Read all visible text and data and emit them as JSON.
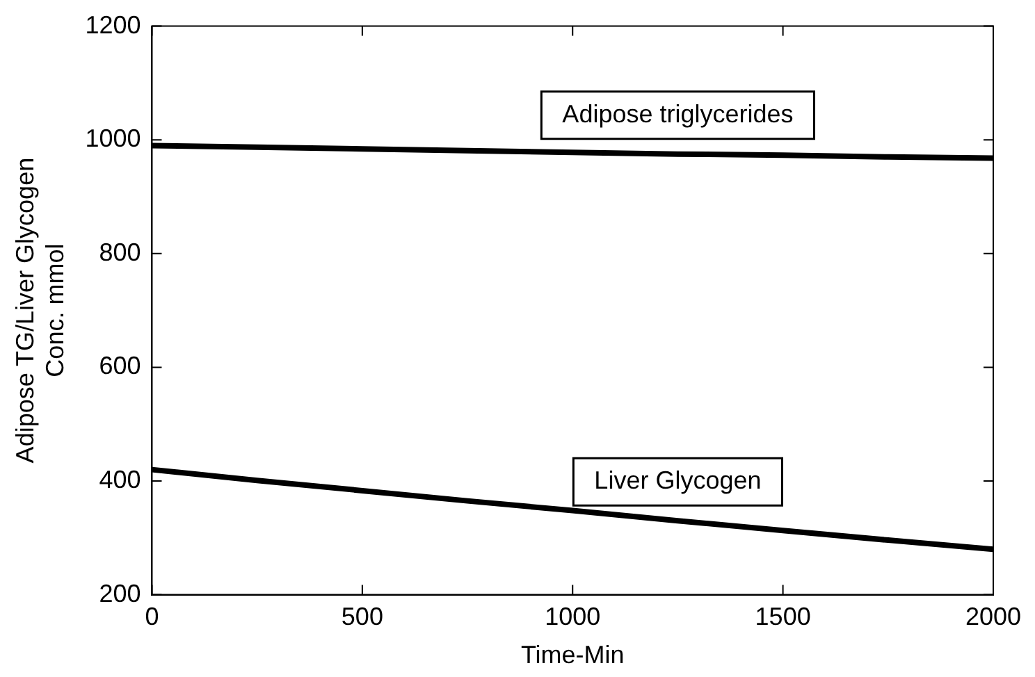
{
  "chart_data": {
    "type": "line",
    "xlabel": "Time-Min",
    "ylabel": "Adipose TG/Liver Glycogen\nConc. mmol",
    "x": [
      0,
      250,
      500,
      750,
      1000,
      1250,
      1500,
      1750,
      2000
    ],
    "series": [
      {
        "name": "Adipose triglycerides",
        "color": "#000000",
        "values": [
          990,
          987,
          984,
          981,
          978,
          975,
          973,
          970,
          968
        ]
      },
      {
        "name": "Liver Glycogen",
        "color": "#000000",
        "values": [
          420,
          401,
          383,
          365,
          348,
          330,
          313,
          296,
          280
        ]
      }
    ],
    "xlim": [
      0,
      2000
    ],
    "xticks": [
      0,
      500,
      1000,
      1500,
      2000
    ],
    "ylim": [
      200,
      1200
    ],
    "yticks": [
      200,
      400,
      600,
      800,
      1000,
      1200
    ],
    "grid": false,
    "legend": false,
    "marker": "none",
    "line_style": "solid"
  }
}
